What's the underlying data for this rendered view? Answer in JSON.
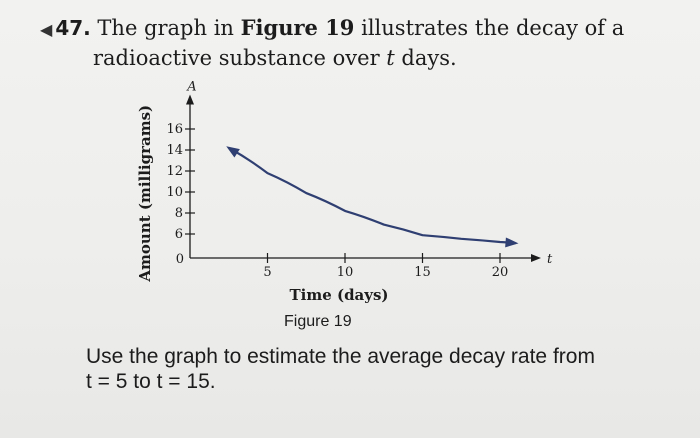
{
  "problem": {
    "marker_icon": "triangle-bullet-icon",
    "number": "47.",
    "text_a": " The graph in ",
    "text_bold": "Figure 19",
    "text_b": " illustrates the decay of a",
    "line2_a": "radioactive substance over ",
    "line2_var": "t",
    "line2_b": " days."
  },
  "figure_caption": "Figure 19",
  "question": {
    "line1": "Use the graph to estimate the average decay rate from",
    "line2": "t = 5 to t = 15."
  },
  "chart_data": {
    "type": "line",
    "title": "",
    "xlabel": "Time (days)",
    "ylabel": "Amount (milligrams)",
    "x_axis_var": "t",
    "y_axis_var": "A",
    "xlim": [
      0,
      22
    ],
    "ylim": [
      0,
      17
    ],
    "x_ticks": [
      {
        "value": 5,
        "label": "5"
      },
      {
        "value": 10,
        "label": "10"
      },
      {
        "value": 15,
        "label": "15"
      },
      {
        "value": 20,
        "label": "20"
      }
    ],
    "y_ticks": [
      {
        "value": 6,
        "label": "6"
      },
      {
        "value": 8,
        "label": "8"
      },
      {
        "value": 10,
        "label": "10"
      },
      {
        "value": 12,
        "label": "12"
      },
      {
        "value": 14,
        "label": "14"
      },
      {
        "value": 16,
        "label": "16"
      }
    ],
    "origin_label": "0",
    "grid": false,
    "series": [
      {
        "color": "#2f3f72",
        "x": [
          2.5,
          5,
          7.5,
          10,
          12.5,
          15,
          17.5,
          20,
          21
        ],
        "y": [
          14.2,
          11.8,
          9.9,
          8.2,
          6.9,
          5.7,
          4.8,
          4.0,
          3.7
        ]
      }
    ]
  }
}
